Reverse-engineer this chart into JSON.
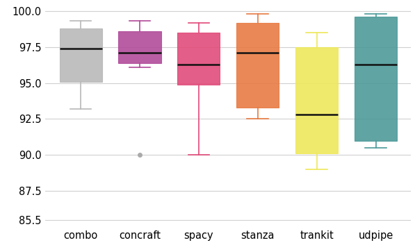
{
  "tools": [
    "combo",
    "concraft",
    "spacy",
    "stanza",
    "trankit",
    "udpipe"
  ],
  "colors": [
    "#b8b8b8",
    "#b04898",
    "#e04878",
    "#e87840",
    "#eee858",
    "#4a9898"
  ],
  "box_data": {
    "combo": {
      "whislo": 93.2,
      "q1": 95.1,
      "med": 97.4,
      "q3": 98.8,
      "whishi": 99.3,
      "fliers": []
    },
    "concraft": {
      "whislo": 96.1,
      "q1": 96.4,
      "med": 97.1,
      "q3": 98.6,
      "whishi": 99.3,
      "fliers": [
        90.0
      ]
    },
    "spacy": {
      "whislo": 90.0,
      "q1": 94.9,
      "med": 96.3,
      "q3": 98.5,
      "whishi": 99.2,
      "fliers": []
    },
    "stanza": {
      "whislo": 92.5,
      "q1": 93.3,
      "med": 97.1,
      "q3": 99.2,
      "whishi": 99.8,
      "fliers": []
    },
    "trankit": {
      "whislo": 89.0,
      "q1": 90.1,
      "med": 92.8,
      "q3": 97.5,
      "whishi": 98.5,
      "fliers": []
    },
    "udpipe": {
      "whislo": 90.5,
      "q1": 91.0,
      "med": 96.3,
      "q3": 99.6,
      "whishi": 99.8,
      "fliers": []
    }
  },
  "ylim": [
    85.0,
    100.5
  ],
  "yticks": [
    85.5,
    87.5,
    90.0,
    92.5,
    95.0,
    97.5,
    100.0
  ],
  "background_color": "#ffffff",
  "grid_color": "#d0d0d0",
  "median_color": "#111111",
  "flier_color": "#aaaaaa"
}
